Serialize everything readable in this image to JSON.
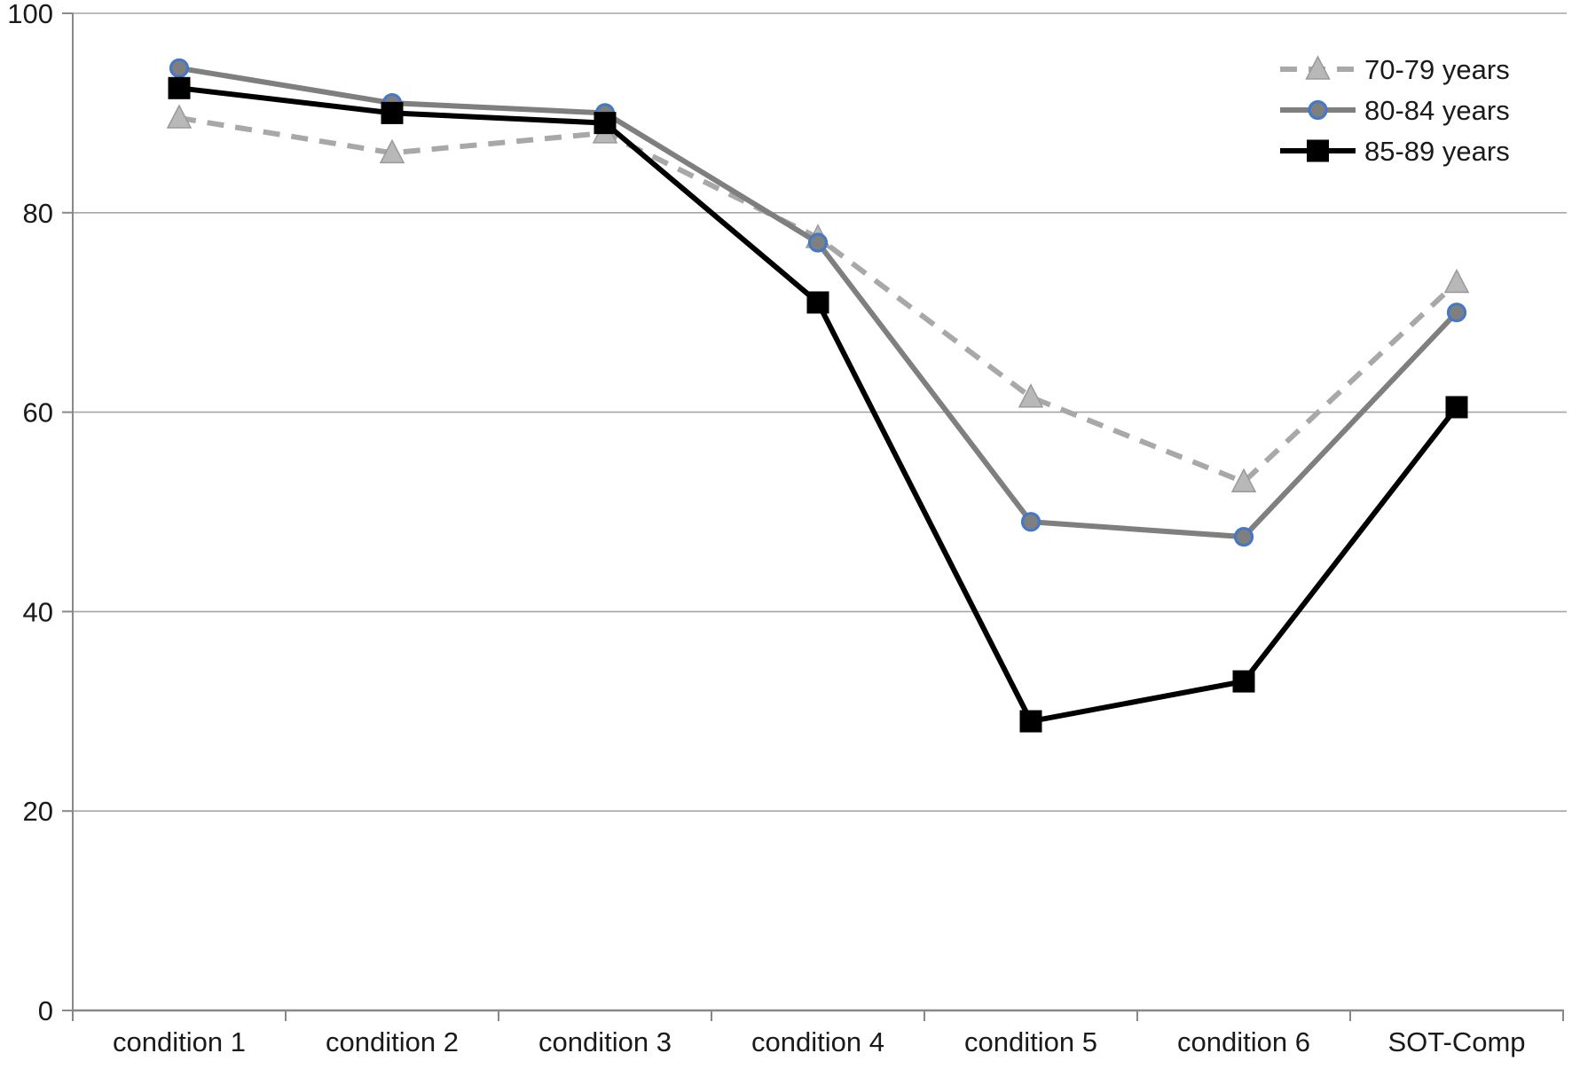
{
  "chart_data": {
    "type": "line",
    "title": "",
    "xlabel": "",
    "ylabel": "",
    "categories": [
      "condition 1",
      "condition 2",
      "condition 3",
      "condition 4",
      "condition 5",
      "condition 6",
      "SOT-Comp"
    ],
    "series": [
      {
        "name": "70-79 years",
        "values": [
          89.5,
          86,
          88,
          77.5,
          61.5,
          53,
          73
        ],
        "line_color": "#a8a8a8",
        "marker": "triangle",
        "marker_fill": "#b8b8b8",
        "marker_edge": "#9a9a9a",
        "dashed": true
      },
      {
        "name": "80-84 years",
        "values": [
          94.5,
          91,
          90,
          77,
          49,
          47.5,
          70
        ],
        "line_color": "#7f7f7f",
        "marker": "circle",
        "marker_fill": "#7f7f7f",
        "marker_edge": "#4579c6",
        "dashed": false
      },
      {
        "name": "85-89 years",
        "values": [
          92.5,
          90,
          89,
          71,
          29,
          33,
          60.5
        ],
        "line_color": "#000000",
        "marker": "square",
        "marker_fill": "#000000",
        "marker_edge": "#000000",
        "dashed": false
      }
    ],
    "ylim": [
      0,
      100
    ],
    "yticks": [
      0,
      20,
      40,
      60,
      80,
      100
    ],
    "grid": true,
    "legend_position": "top-right",
    "colors": {
      "gridline": "#a6a6a6",
      "axis": "#898989",
      "tick_text": "#1a1a1a",
      "background": "#ffffff"
    }
  }
}
